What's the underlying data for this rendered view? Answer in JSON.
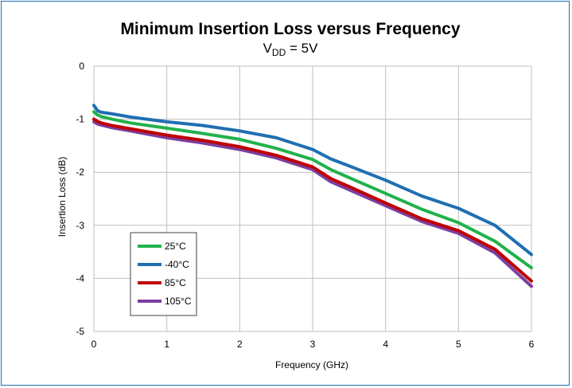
{
  "chart_data": {
    "type": "line",
    "title": "Minimum Insertion Loss versus Frequency",
    "subtitle": {
      "main": "V",
      "sub": "DD",
      "rest": " = 5V"
    },
    "xlabel": "Frequency (GHz)",
    "ylabel": "Insertion Loss (dB)",
    "xlim": [
      0,
      6
    ],
    "ylim": [
      -5,
      0
    ],
    "xticks": [
      "0",
      "1",
      "2",
      "3",
      "4",
      "5",
      "6"
    ],
    "yticks": [
      "0",
      "-1",
      "-2",
      "-3",
      "-4",
      "-5"
    ],
    "grid": true,
    "legend_position": "lower-left",
    "x": [
      0,
      0.05,
      0.1,
      0.25,
      0.5,
      1,
      1.5,
      2,
      2.5,
      3,
      3.25,
      3.5,
      4,
      4.5,
      5,
      5.5,
      6
    ],
    "series": [
      {
        "name": "25°C",
        "color": "#22b14c",
        "values": [
          -0.86,
          -0.92,
          -0.95,
          -1.0,
          -1.07,
          -1.17,
          -1.27,
          -1.38,
          -1.55,
          -1.76,
          -1.95,
          -2.1,
          -2.4,
          -2.7,
          -2.95,
          -3.3,
          -3.8
        ]
      },
      {
        "name": "-40°C",
        "color": "#1f6fb2",
        "values": [
          -0.74,
          -0.84,
          -0.87,
          -0.9,
          -0.96,
          -1.05,
          -1.12,
          -1.22,
          -1.35,
          -1.57,
          -1.75,
          -1.88,
          -2.15,
          -2.45,
          -2.68,
          -3.0,
          -3.55
        ]
      },
      {
        "name": "85°C",
        "color": "#c00000",
        "values": [
          -1.0,
          -1.04,
          -1.07,
          -1.12,
          -1.18,
          -1.3,
          -1.4,
          -1.52,
          -1.68,
          -1.9,
          -2.12,
          -2.27,
          -2.58,
          -2.88,
          -3.1,
          -3.45,
          -4.05
        ]
      },
      {
        "name": "105°C",
        "color": "#7b3fa0",
        "values": [
          -1.05,
          -1.09,
          -1.11,
          -1.16,
          -1.22,
          -1.35,
          -1.45,
          -1.57,
          -1.73,
          -1.95,
          -2.18,
          -2.33,
          -2.63,
          -2.93,
          -3.15,
          -3.52,
          -4.15
        ]
      }
    ]
  }
}
